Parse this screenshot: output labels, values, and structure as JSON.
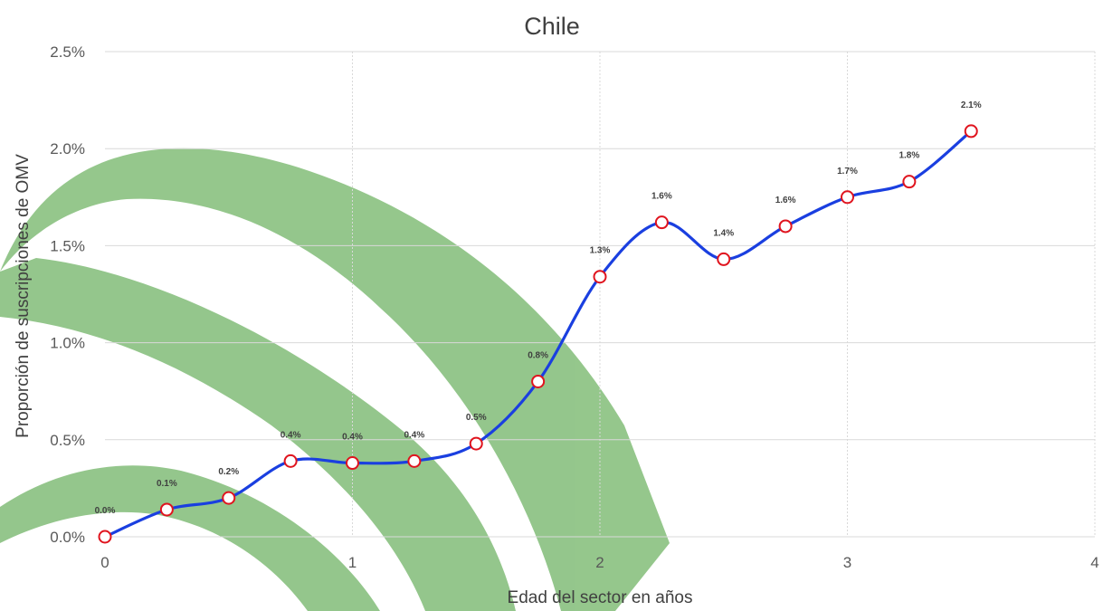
{
  "chart_data": {
    "type": "line",
    "title": "Chile",
    "xlabel": "Edad del sector en años",
    "ylabel": "Proporción de suscripciones de OMV",
    "xlim": [
      0,
      4
    ],
    "ylim": [
      0,
      0.025
    ],
    "x_ticks": [
      0,
      1,
      2,
      3,
      4
    ],
    "x_tick_labels": [
      "0",
      "1",
      "2",
      "3",
      "4"
    ],
    "y_ticks": [
      0,
      0.005,
      0.01,
      0.015,
      0.02,
      0.025
    ],
    "y_tick_labels": [
      "0.0%",
      "0.5%",
      "1.0%",
      "1.5%",
      "2.0%",
      "2.5%"
    ],
    "grid": true,
    "smooth": true,
    "series": [
      {
        "x": [
          0,
          0.25,
          0.5,
          0.75,
          1,
          1.25,
          1.5,
          1.75,
          2,
          2.25,
          2.5,
          2.75,
          3,
          3.25,
          3.5
        ],
        "values": [
          0.0,
          0.0014,
          0.002,
          0.0039,
          0.0038,
          0.0039,
          0.0048,
          0.008,
          0.0134,
          0.0162,
          0.0143,
          0.016,
          0.0175,
          0.0183,
          0.0209
        ],
        "data_labels": [
          "0.0%",
          "0.1%",
          "0.2%",
          "0.4%",
          "0.4%",
          "0.4%",
          "0.5%",
          "0.8%",
          "1.3%",
          "1.6%",
          "1.4%",
          "1.6%",
          "1.7%",
          "1.8%",
          "2.1%"
        ]
      }
    ],
    "colors": {
      "line": "#1a3fe0",
      "marker_edge": "#e0141e",
      "marker_fill": "#ffffff",
      "grid": "#d9d9d9",
      "watermark": "#8fc486"
    }
  }
}
